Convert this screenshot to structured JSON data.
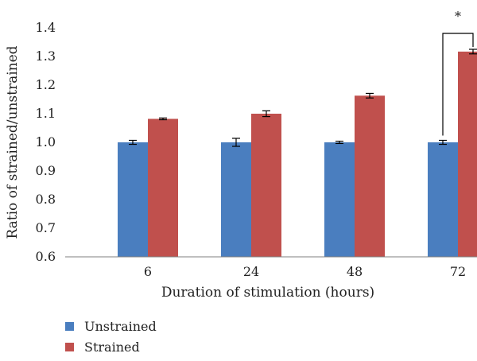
{
  "chart_data": {
    "type": "bar",
    "categories": [
      "6",
      "24",
      "48",
      "72"
    ],
    "series": [
      {
        "name": "Unstrained",
        "color": "#4a7ebf",
        "values": [
          1.0,
          1.0,
          1.0,
          1.0
        ],
        "errors": [
          0.007,
          0.014,
          0.004,
          0.007
        ]
      },
      {
        "name": "Strained",
        "color": "#c0504d",
        "values": [
          1.082,
          1.1,
          1.163,
          1.317
        ],
        "errors": [
          0.003,
          0.01,
          0.008,
          0.008
        ]
      }
    ],
    "xlabel": "Duration of stimulation (hours)",
    "ylabel": "Ratio of strained/unstrained",
    "ylim": [
      0.6,
      1.4
    ],
    "yticks": [
      "0.6",
      "0.7",
      "0.8",
      "0.9",
      "1.0",
      "1.1",
      "1.2",
      "1.3",
      "1.4"
    ],
    "legend_position": "bottom-left",
    "grid": false,
    "annotation": {
      "text": "*",
      "category": "72"
    }
  }
}
